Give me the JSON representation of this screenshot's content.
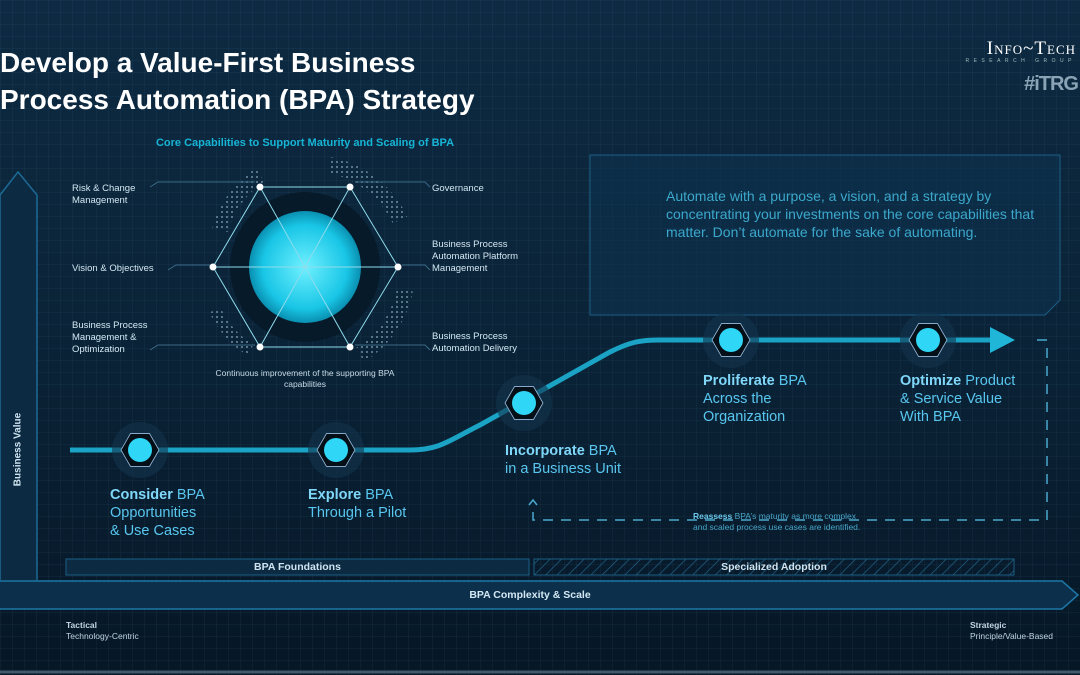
{
  "title_lines": [
    "Develop a Value-First Business",
    "Process Automation (BPA) Strategy"
  ],
  "logo": {
    "name": "Info~Tech",
    "subtitle": "RESEARCH GROUP",
    "tag": "#iTRG"
  },
  "core": {
    "title": "Core Capabilities to Support Maturity and Scaling of BPA",
    "capabilities": [
      {
        "label": "Risk & Change Management"
      },
      {
        "label": "Governance"
      },
      {
        "label": "Vision & Objectives"
      },
      {
        "label": "Business Process Automation Platform Management"
      },
      {
        "label": "Business Process Management & Optimization"
      },
      {
        "label": "Business Process Automation Delivery"
      }
    ],
    "caption": "Continuous improvement of the supporting BPA capabilities"
  },
  "callout": "Automate with a purpose, a vision, and a strategy by concentrating your investments on the core capabilities that matter. Don’t automate for the sake of automating.",
  "stages": [
    {
      "verb": "Consider",
      "rest1": " BPA",
      "rest2": "Opportunities",
      "rest3": "& Use Cases"
    },
    {
      "verb": "Explore",
      "rest1": " BPA",
      "rest2": "Through a Pilot",
      "rest3": ""
    },
    {
      "verb": "Incorporate",
      "rest1": " BPA",
      "rest2": "in a Business Unit",
      "rest3": ""
    },
    {
      "verb": "Proliferate",
      "rest1": " BPA",
      "rest2": "Across the",
      "rest3": "Organization"
    },
    {
      "verb": "Optimize",
      "rest1": " Product",
      "rest2": "& Service Value",
      "rest3": "With BPA"
    }
  ],
  "reassess": {
    "bold": "Reassess",
    "text1": " BPA’s maturity as more complex",
    "text2": "and scaled process use cases are identified."
  },
  "phases": [
    "BPA Foundations",
    "Specialized Adoption"
  ],
  "x_axis": {
    "label": "BPA Complexity & Scale",
    "left_title": "Tactical",
    "left_sub": "Technology-Centric",
    "right_title": "Strategic",
    "right_sub": "Principle/Value-Based"
  },
  "y_axis": {
    "label": "Business Value"
  },
  "colors": {
    "accent": "#17b4d6",
    "node": "#2fd6f5",
    "background": "#0b2338"
  }
}
